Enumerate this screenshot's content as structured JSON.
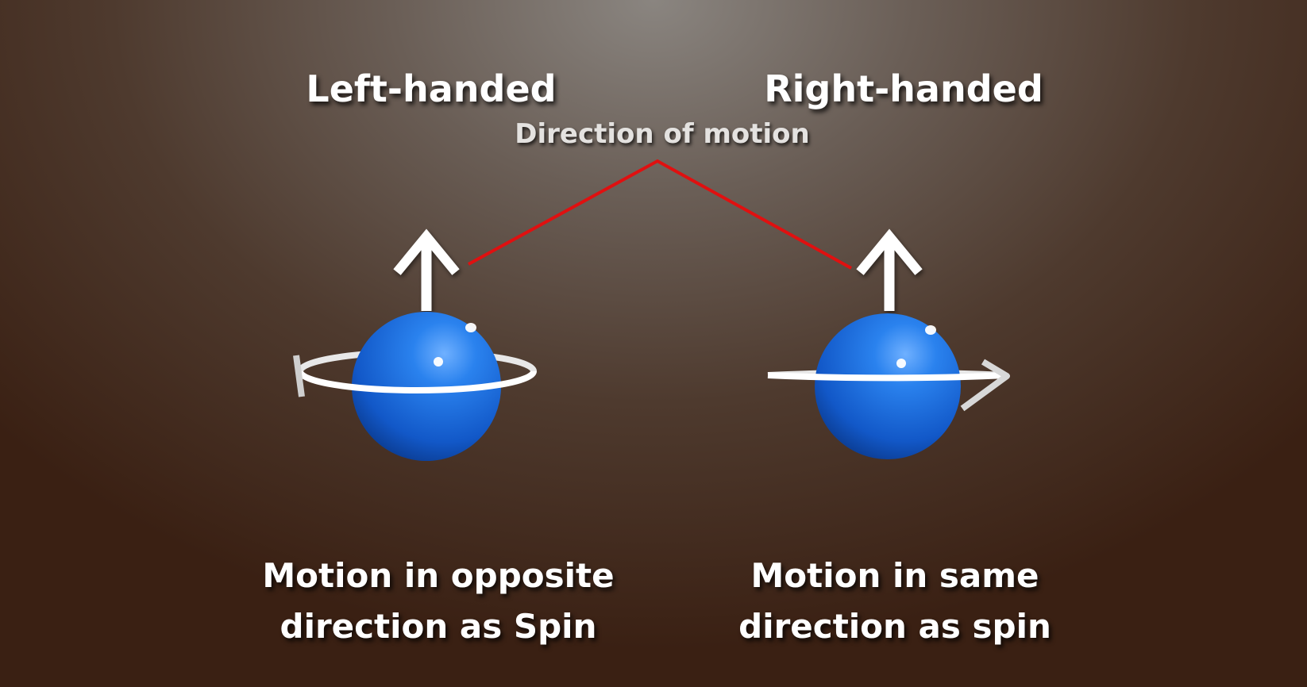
{
  "labels": {
    "left_title": "Left-handed",
    "right_title": "Right-handed",
    "motion": "Direction of motion",
    "left_caption_line1": "Motion in opposite",
    "left_caption_line2": "direction as Spin",
    "right_caption_line1": "Motion in same",
    "right_caption_line2": "direction as spin"
  },
  "colors": {
    "sphere": "#1a6fe0",
    "pointer_line": "#e01010",
    "arrow": "#ffffff"
  }
}
